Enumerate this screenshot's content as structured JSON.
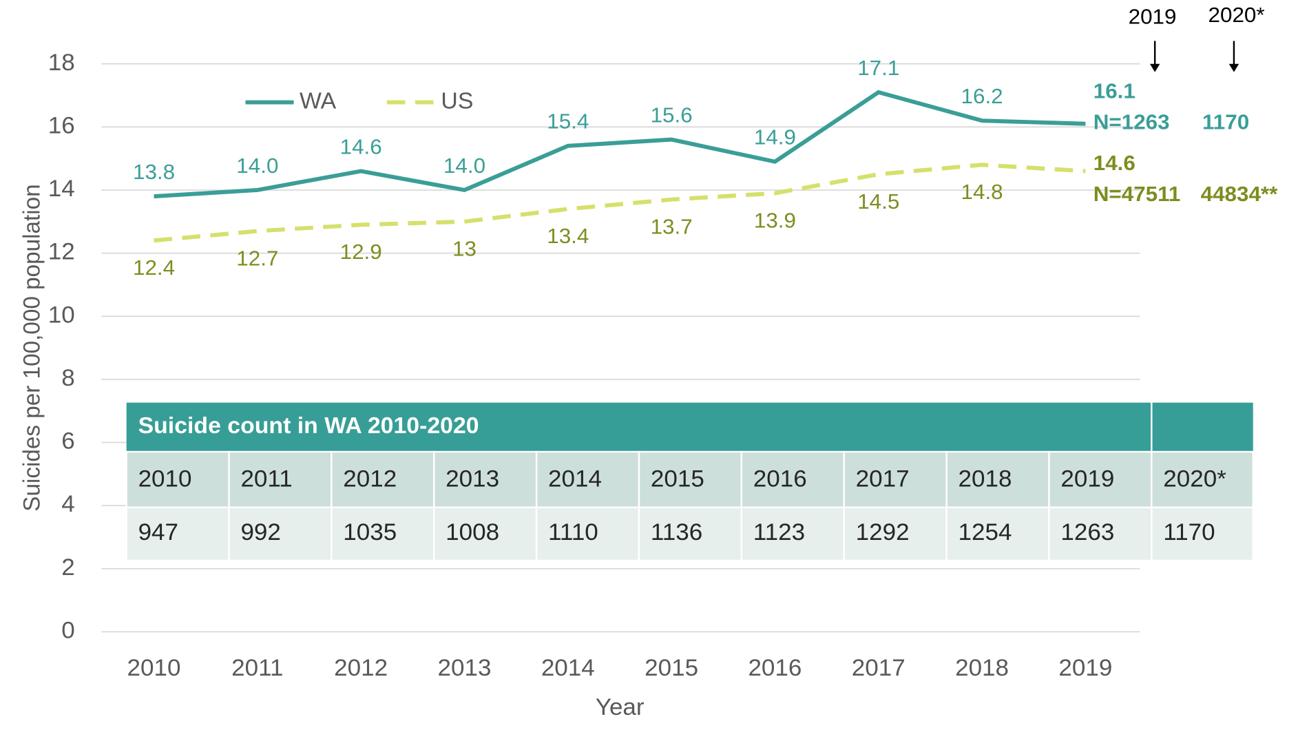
{
  "chart_data": {
    "type": "line",
    "ylabel": "Suicides per 100,000 population",
    "xlabel": "Year",
    "categories": [
      "2010",
      "2011",
      "2012",
      "2013",
      "2014",
      "2015",
      "2016",
      "2017",
      "2018",
      "2019"
    ],
    "series": [
      {
        "name": "WA",
        "color": "#3a9e97",
        "dashed": false,
        "values": [
          13.8,
          14.0,
          14.6,
          14.0,
          15.4,
          15.6,
          14.9,
          17.1,
          16.2,
          16.1
        ],
        "value_labels": [
          "13.8",
          "14.0",
          "14.6",
          "14.0",
          "15.4",
          "15.6",
          "14.9",
          "17.1",
          "16.2",
          "16.1"
        ]
      },
      {
        "name": "US",
        "color": "#d6e06b",
        "dashed": true,
        "values": [
          12.4,
          12.7,
          12.9,
          13,
          13.4,
          13.7,
          13.9,
          14.5,
          14.8,
          14.6
        ]
      }
    ],
    "ylim": [
      0,
      18
    ],
    "yticks": [
      0,
      2,
      4,
      6,
      8,
      10,
      12,
      14,
      16,
      18
    ],
    "grid": true,
    "legend": "top-left",
    "annotations": {
      "year_2019": "2019",
      "year_2020": "2020*",
      "wa_n_2019": "N=1263",
      "wa_n_2020": "1170",
      "us_n_2019": "N=47511",
      "us_n_2020": "44834**"
    }
  },
  "table": {
    "title": "Suicide count in WA 2010-2020",
    "years": [
      "2010",
      "2011",
      "2012",
      "2013",
      "2014",
      "2015",
      "2016",
      "2017",
      "2018",
      "2019",
      "2020*"
    ],
    "counts": [
      947,
      992,
      1035,
      1008,
      1110,
      1136,
      1123,
      1292,
      1254,
      1263,
      1170
    ]
  }
}
